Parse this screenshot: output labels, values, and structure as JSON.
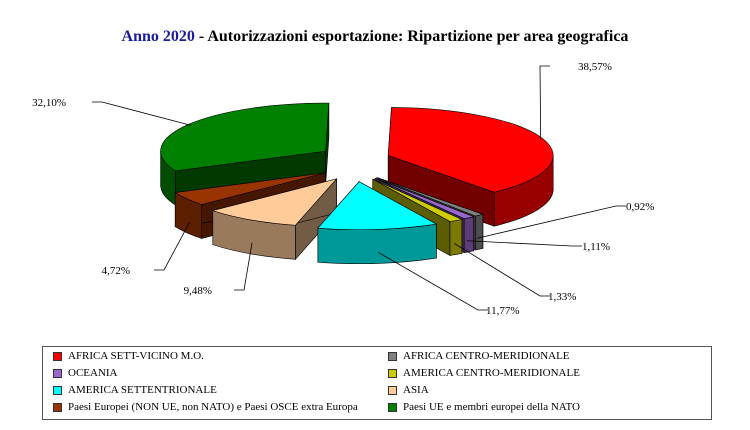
{
  "title": {
    "year": "Anno 2020",
    "text": " - Autorizzazioni esportazione: Ripartizione per area geografica"
  },
  "chart_data": {
    "type": "pie",
    "title": "Anno 2020 - Autorizzazioni esportazione: Ripartizione per area geografica",
    "legend_position": "bottom",
    "slices": [
      {
        "name": "AFRICA SETT-VICINO M.O.",
        "value": 38.57,
        "label": "38,57%",
        "color": "#ff0000"
      },
      {
        "name": "AFRICA CENTRO-MERIDIONALE",
        "value": 0.92,
        "label": "0,92%",
        "color": "#808080"
      },
      {
        "name": "OCEANIA",
        "value": 1.11,
        "label": "1,11%",
        "color": "#9966cc"
      },
      {
        "name": "AMERICA CENTRO-MERIDIONALE",
        "value": 1.33,
        "label": "1,33%",
        "color": "#cccc00"
      },
      {
        "name": "AMERICA SETTENTRIONALE",
        "value": 11.77,
        "label": "11,77%",
        "color": "#00ffff"
      },
      {
        "name": "ASIA",
        "value": 9.48,
        "label": "9,48%",
        "color": "#ffcc99"
      },
      {
        "name": "Paesi Europei (NON UE, non NATO) e Paesi OSCE extra Europa",
        "value": 4.72,
        "label": "4,72%",
        "color": "#993300"
      },
      {
        "name": "Paesi UE e membri europei della NATO",
        "value": 32.1,
        "label": "32,10%",
        "color": "#008000"
      }
    ]
  },
  "legend": {
    "order": [
      0,
      1,
      2,
      3,
      4,
      5,
      6,
      7
    ]
  }
}
